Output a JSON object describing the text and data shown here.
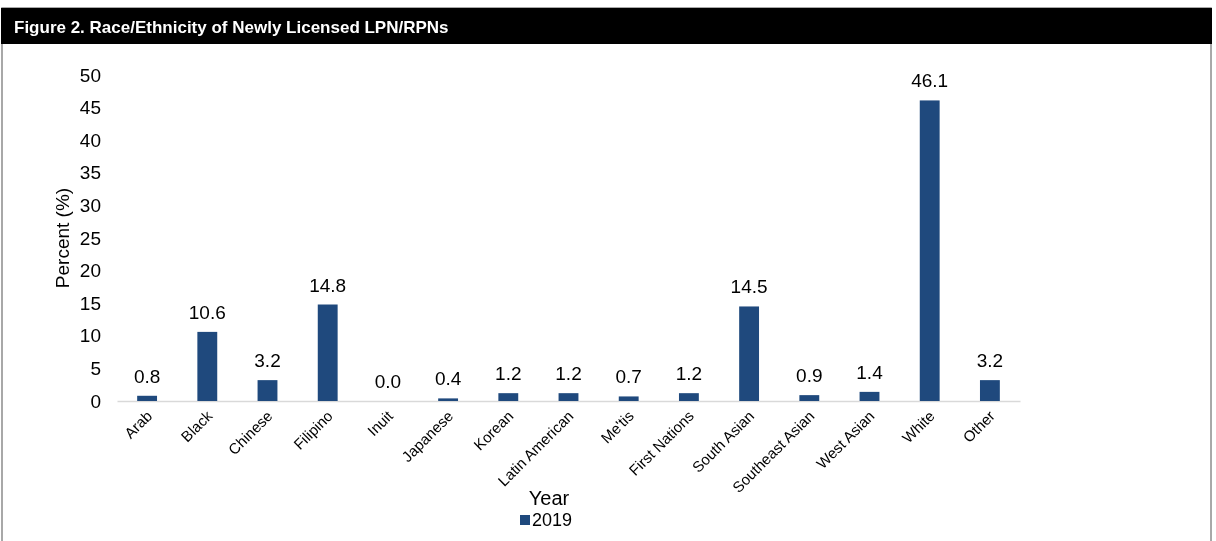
{
  "chart_data": {
    "type": "bar",
    "title": "Figure 2. Race/Ethnicity of Newly Licensed LPN/RPNs",
    "xlabel": "Year",
    "ylabel": "Percent (%)",
    "categories": [
      "Arab",
      "Black",
      "Chinese",
      "Filipino",
      "Inuit",
      "Japanese",
      "Korean",
      "Latin American",
      "Me'tis",
      "First Nations",
      "South Asian",
      "Southeast Asian",
      "West Asian",
      "White",
      "Other"
    ],
    "series": [
      {
        "name": "2019",
        "color": "#1f497d",
        "values": [
          0.8,
          10.6,
          3.2,
          14.8,
          0.0,
          0.4,
          1.2,
          1.2,
          0.7,
          1.2,
          14.5,
          0.9,
          1.4,
          46.1,
          3.2
        ],
        "value_labels": [
          "0.8",
          "10.6",
          "3.2",
          "14.8",
          "0.0",
          "0.4",
          "1.2",
          "1.2",
          "0.7",
          "1.2",
          "14.5",
          "0.9",
          "1.4",
          "46.1",
          "3.2"
        ]
      }
    ],
    "ylim": [
      0,
      50
    ],
    "yticks": [
      0,
      5,
      10,
      15,
      20,
      25,
      30,
      35,
      40,
      45,
      50
    ],
    "grid": false,
    "legend": "bottom"
  }
}
